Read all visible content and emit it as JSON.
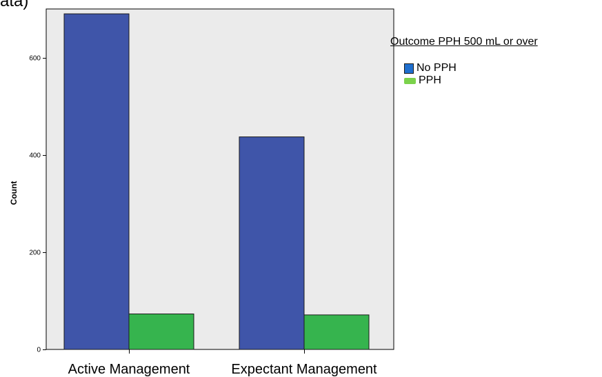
{
  "header_fragment": "ata)",
  "chart_data": {
    "type": "bar",
    "categories": [
      "Active Management",
      "Expectant Management"
    ],
    "series": [
      {
        "name": "No PPH",
        "values": [
          690,
          437
        ],
        "color": "#3f55a9"
      },
      {
        "name": "PPH",
        "values": [
          73,
          71
        ],
        "color": "#36b44e"
      }
    ],
    "ylabel": "Count",
    "ylim": [
      0,
      700
    ],
    "yticks": [
      0,
      200,
      400,
      600
    ],
    "legend_title": "Outcome PPH 500 mL or over",
    "legend_position": "right",
    "plot_background": "#ebebeb",
    "grid": false
  },
  "legend": {
    "title": "Outcome PPH 500 mL or over",
    "items": [
      {
        "label": "No PPH",
        "swatch_color": "#1f6fce"
      },
      {
        "label": "PPH",
        "swatch_color": "#7bd24b"
      }
    ]
  }
}
